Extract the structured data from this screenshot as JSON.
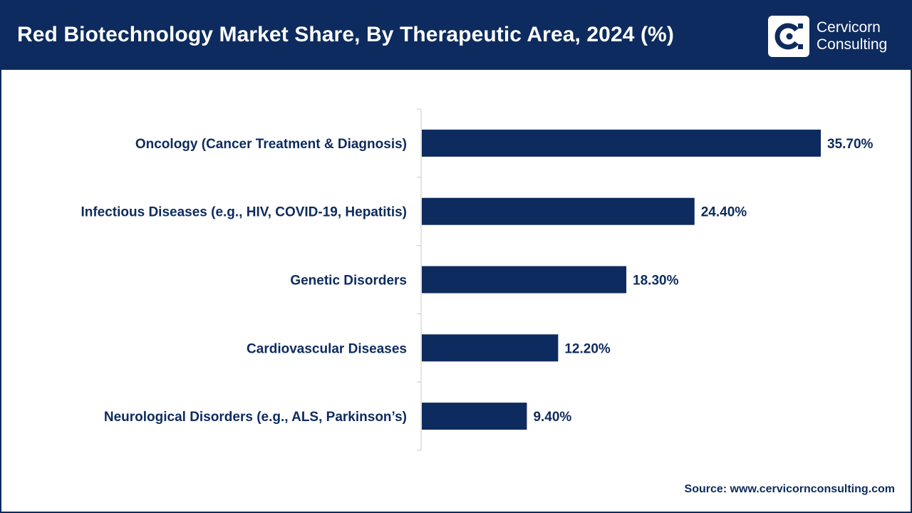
{
  "header": {
    "title": "Red Biotechnology Market Share, By Therapeutic Area, 2024 (%)",
    "logo_line1": "Cervicorn",
    "logo_line2": "Consulting"
  },
  "footer": {
    "source": "Source: www.cervicornconsulting.com"
  },
  "colors": {
    "brand": "#0d2b5e",
    "bar": "#0d2b5e",
    "axis": "#c8c8c8"
  },
  "chart_data": {
    "type": "bar",
    "orientation": "horizontal",
    "title": "Red Biotechnology Market Share, By Therapeutic Area, 2024 (%)",
    "categories": [
      "Oncology (Cancer Treatment & Diagnosis)",
      "Infectious Diseases (e.g., HIV, COVID-19, Hepatitis)",
      "Genetic Disorders",
      "Cardiovascular Diseases",
      "Neurological Disorders (e.g., ALS, Parkinson’s)"
    ],
    "values": [
      35.7,
      24.4,
      18.3,
      12.2,
      9.4
    ],
    "value_labels": [
      "35.70%",
      "24.40%",
      "18.30%",
      "12.20%",
      "9.40%"
    ],
    "xlim": [
      0,
      35.7
    ],
    "xlabel": "",
    "ylabel": "",
    "grid": false,
    "legend": "none"
  }
}
